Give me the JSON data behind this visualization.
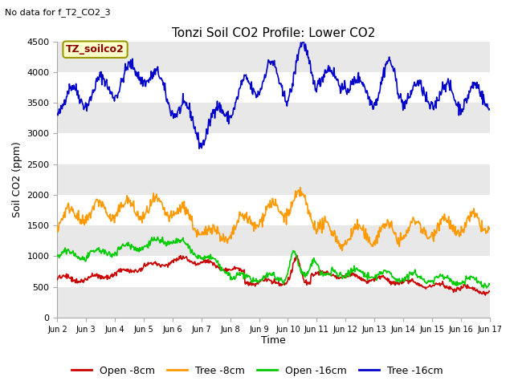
{
  "title": "Tonzi Soil CO2 Profile: Lower CO2",
  "subtitle": "No data for f_T2_CO2_3",
  "ylabel": "Soil CO2 (ppm)",
  "xlabel": "Time",
  "legend_label": "TZ_soilco2",
  "xtick_labels": [
    "Jun 2",
    "Jun 3",
    "Jun 4",
    "Jun 5",
    "Jun 6",
    "Jun 7",
    "Jun 8",
    "Jun 9",
    "Jun 10",
    "Jun 11",
    "Jun 12",
    "Jun 13",
    "Jun 14",
    "Jun 15",
    "Jun 16",
    "Jun 17"
  ],
  "yticks": [
    0,
    500,
    1000,
    1500,
    2000,
    2500,
    3000,
    3500,
    4000,
    4500
  ],
  "ylim": [
    0,
    4500
  ],
  "fig_bg": "#ffffff",
  "plot_bg": "#ffffff",
  "band_color": "#e8e8e8",
  "series_colors": {
    "open_8cm": "#cc0000",
    "tree_8cm": "#ff9900",
    "open_16cm": "#00cc00",
    "tree_16cm": "#0000cc"
  },
  "legend_entries": [
    "Open -8cm",
    "Tree -8cm",
    "Open -16cm",
    "Tree -16cm"
  ]
}
